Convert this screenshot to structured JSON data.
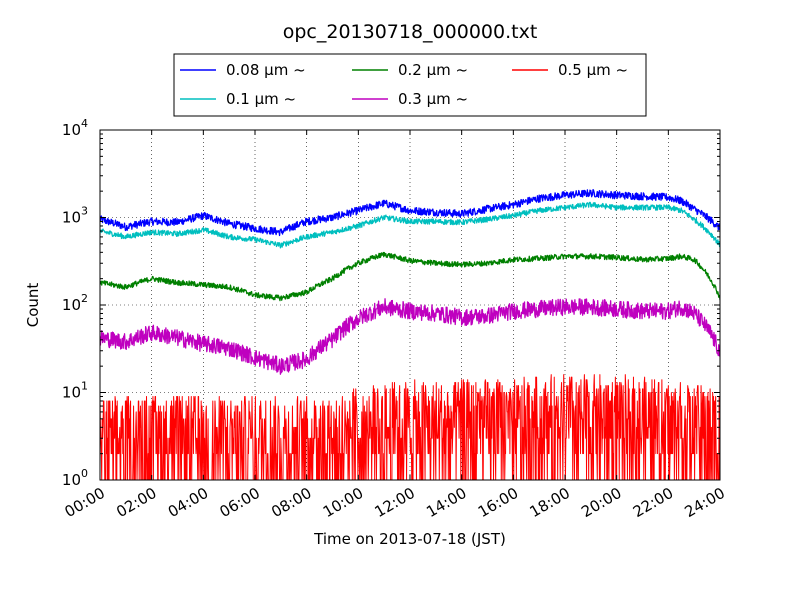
{
  "chart_data": {
    "type": "line",
    "title": "opc_20130718_000000.txt",
    "xlabel": "Time on 2013-07-18 (JST)",
    "ylabel": "Count",
    "xscale": "linear",
    "yscale": "log",
    "xlim": [
      0,
      24
    ],
    "ylim": [
      1,
      10000
    ],
    "grid": true,
    "legend_position": "top",
    "x_ticks": [
      "00:00",
      "02:00",
      "04:00",
      "06:00",
      "08:00",
      "10:00",
      "12:00",
      "14:00",
      "16:00",
      "18:00",
      "20:00",
      "22:00",
      "24:00"
    ],
    "y_ticks": [
      {
        "value": 1,
        "base": "10",
        "exp": "0"
      },
      {
        "value": 10,
        "base": "10",
        "exp": "1"
      },
      {
        "value": 100,
        "base": "10",
        "exp": "2"
      },
      {
        "value": 1000,
        "base": "10",
        "exp": "3"
      },
      {
        "value": 10000,
        "base": "10",
        "exp": "4"
      }
    ],
    "legend_layout": [
      [
        0,
        1
      ],
      [
        2,
        3
      ],
      [
        4
      ]
    ],
    "series": [
      {
        "name": "0.08 μm ~",
        "color": "#0000ff",
        "x": [
          0,
          1,
          2,
          3,
          4,
          5,
          6,
          7,
          8,
          9,
          10,
          11,
          12,
          13,
          14,
          15,
          16,
          17,
          18,
          19,
          20,
          21,
          22,
          22.5,
          23,
          24
        ],
        "values": [
          950,
          780,
          900,
          880,
          1050,
          850,
          750,
          680,
          900,
          1000,
          1200,
          1450,
          1200,
          1150,
          1100,
          1250,
          1400,
          1650,
          1800,
          1900,
          1800,
          1750,
          1700,
          1550,
          1250,
          750
        ]
      },
      {
        "name": "0.1 μm ~",
        "color": "#00bfbf",
        "x": [
          0,
          1,
          2,
          3,
          4,
          5,
          6,
          7,
          8,
          9,
          10,
          11,
          12,
          13,
          14,
          15,
          16,
          17,
          18,
          19,
          20,
          21,
          22,
          22.5,
          23,
          24
        ],
        "values": [
          700,
          600,
          680,
          650,
          720,
          600,
          560,
          480,
          600,
          680,
          800,
          1000,
          900,
          900,
          880,
          950,
          1050,
          1200,
          1300,
          1400,
          1300,
          1300,
          1300,
          1200,
          950,
          480
        ]
      },
      {
        "name": "0.2 μm ~",
        "color": "#008000",
        "x": [
          0,
          1,
          2,
          3,
          4,
          5,
          6,
          7,
          8,
          9,
          10,
          11,
          12,
          13,
          14,
          15,
          16,
          17,
          18,
          19,
          20,
          21,
          22,
          22.5,
          23,
          24
        ],
        "values": [
          180,
          160,
          200,
          180,
          170,
          160,
          130,
          120,
          140,
          200,
          300,
          380,
          320,
          300,
          290,
          300,
          330,
          340,
          360,
          360,
          350,
          330,
          340,
          360,
          330,
          120
        ]
      },
      {
        "name": "0.3 μm ~",
        "color": "#bf00bf",
        "x": [
          0,
          1,
          2,
          3,
          4,
          5,
          6,
          7,
          8,
          9,
          10,
          11,
          12,
          13,
          14,
          15,
          16,
          17,
          18,
          19,
          20,
          21,
          22,
          22.5,
          23,
          24
        ],
        "values": [
          42,
          38,
          48,
          42,
          36,
          32,
          25,
          20,
          24,
          40,
          70,
          95,
          85,
          80,
          72,
          75,
          85,
          90,
          95,
          95,
          90,
          85,
          85,
          95,
          80,
          28
        ]
      },
      {
        "name": "0.5 μm ~",
        "color": "#ff0000",
        "x": [
          0,
          2,
          4,
          6,
          8,
          10,
          12,
          14,
          16,
          18,
          20,
          22,
          24
        ],
        "values": [
          2,
          2,
          2,
          2,
          2,
          2.5,
          3,
          3,
          3,
          3.5,
          3.5,
          3,
          2.5
        ]
      }
    ]
  }
}
